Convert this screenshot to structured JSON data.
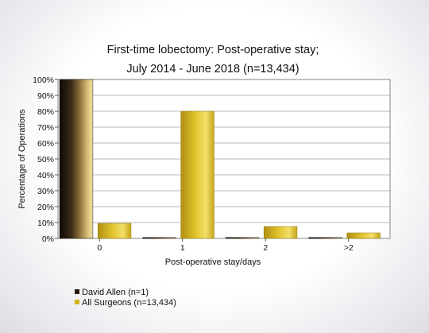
{
  "chart_data": {
    "type": "bar",
    "title": [
      "First-time lobectomy: Post-operative stay;",
      "July 2014 - June 2018 (n=13,434)"
    ],
    "xlabel": "Post-operative stay/days",
    "ylabel": "Percentage of Operations",
    "categories": [
      "0",
      "1",
      "2",
      ">2"
    ],
    "ylim": [
      0,
      100
    ],
    "yticks": [
      "0%",
      "10%",
      "20%",
      "30%",
      "40%",
      "50%",
      "60%",
      "70%",
      "80%",
      "90%",
      "100%"
    ],
    "grid": true,
    "legend_position": "bottom-left",
    "series": [
      {
        "name": "David Allen (n=1)",
        "values": [
          100,
          0,
          0,
          0
        ],
        "color": "#2a1a0c"
      },
      {
        "name": "All Surgeons (n=13,434)",
        "values": [
          9.5,
          80,
          7.5,
          3.5
        ],
        "color": "#d4b21e"
      }
    ]
  }
}
